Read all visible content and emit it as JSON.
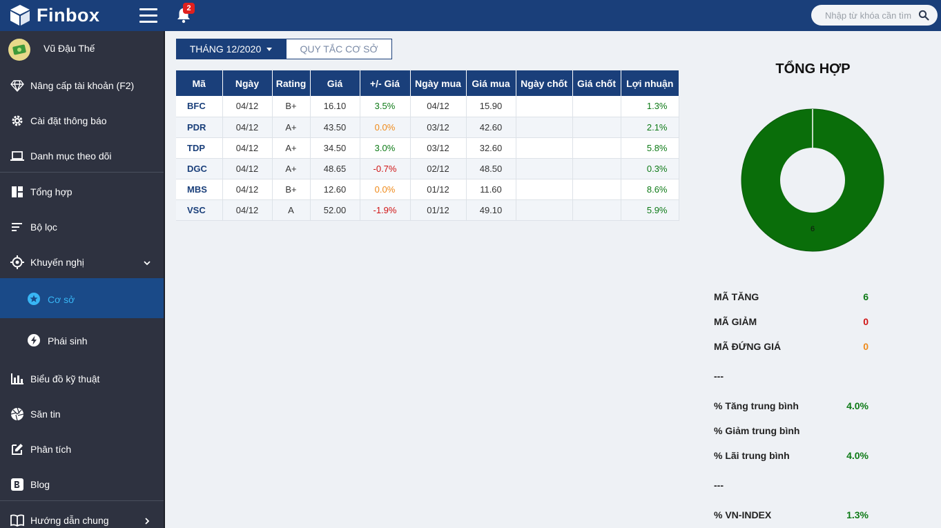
{
  "brand": {
    "name": "Finbox",
    "accent": "#1a3f7a",
    "sidebar_bg": "#2e3240"
  },
  "header": {
    "notification_count": "2",
    "search_placeholder": "Nhập từ khóa cần tìm"
  },
  "user": {
    "name": "Vũ Đậu Thế"
  },
  "sidebar": {
    "items": [
      {
        "label": "Nâng cấp tài khoản (F2)",
        "icon": "diamond-icon"
      },
      {
        "label": "Cài đặt thông báo",
        "icon": "gear-icon"
      },
      {
        "label": "Danh mục theo dõi",
        "icon": "laptop-icon"
      },
      {
        "label": "Tổng hợp",
        "icon": "dashboard-icon"
      },
      {
        "label": "Bộ lọc",
        "icon": "filter-icon"
      },
      {
        "label": "Khuyến nghị",
        "icon": "target-icon"
      },
      {
        "label": "Cơ sở",
        "icon": "star-circle-icon"
      },
      {
        "label": "Phái sinh",
        "icon": "bolt-icon"
      },
      {
        "label": "Biểu đồ kỹ thuật",
        "icon": "bar-chart-icon"
      },
      {
        "label": "Săn tin",
        "icon": "aperture-icon"
      },
      {
        "label": "Phân tích",
        "icon": "edit-icon"
      },
      {
        "label": "Blog",
        "icon": "blog-icon"
      },
      {
        "label": "Hướng dẫn chung",
        "icon": "book-icon"
      }
    ]
  },
  "tabs": {
    "month": "THÁNG 12/2020",
    "rules": "QUY TẮC CƠ SỞ"
  },
  "table": {
    "headers": [
      "Mã",
      "Ngày",
      "Rating",
      "Giá",
      "+/- Giá",
      "Ngày mua",
      "Giá mua",
      "Ngày chốt",
      "Giá chốt",
      "Lợi nhuận"
    ],
    "rows": [
      [
        "BFC",
        "04/12",
        "B+",
        "16.10",
        "3.5%",
        "04/12",
        "15.90",
        "",
        "",
        "1.3%"
      ],
      [
        "PDR",
        "04/12",
        "A+",
        "43.50",
        "0.0%",
        "03/12",
        "42.60",
        "",
        "",
        "2.1%"
      ],
      [
        "TDP",
        "04/12",
        "A+",
        "34.50",
        "3.0%",
        "03/12",
        "32.60",
        "",
        "",
        "5.8%"
      ],
      [
        "DGC",
        "04/12",
        "A+",
        "48.65",
        "-0.7%",
        "02/12",
        "48.50",
        "",
        "",
        "0.3%"
      ],
      [
        "MBS",
        "04/12",
        "B+",
        "12.60",
        "0.0%",
        "01/12",
        "11.60",
        "",
        "",
        "8.6%"
      ],
      [
        "VSC",
        "04/12",
        "A",
        "52.00",
        "-1.9%",
        "01/12",
        "49.10",
        "",
        "",
        "5.9%"
      ]
    ]
  },
  "summary": {
    "title": "TỔNG HỢP",
    "donut_label": "6",
    "stats": {
      "up": {
        "label": "MÃ TĂNG",
        "value": "6"
      },
      "down": {
        "label": "MÃ GIẢM",
        "value": "0"
      },
      "flat": {
        "label": "MÃ ĐỨNG GIÁ",
        "value": "0"
      },
      "sep1": "---",
      "avg_up": {
        "label": "% Tăng trung bình",
        "value": "4.0%"
      },
      "avg_down": {
        "label": "% Giảm trung bình",
        "value": ""
      },
      "avg_profit": {
        "label": "% Lãi trung bình",
        "value": "4.0%"
      },
      "sep2": "---",
      "vnindex": {
        "label": "% VN-INDEX",
        "value": "1.3%"
      }
    }
  },
  "chart_data": {
    "type": "pie",
    "title": "TỔNG HỢP",
    "categories": [
      "Mã tăng",
      "Mã giảm",
      "Mã đứng giá"
    ],
    "values": [
      6,
      0,
      0
    ],
    "colors": [
      "#0a6e0a",
      "#d01414",
      "#ef8a1a"
    ]
  }
}
